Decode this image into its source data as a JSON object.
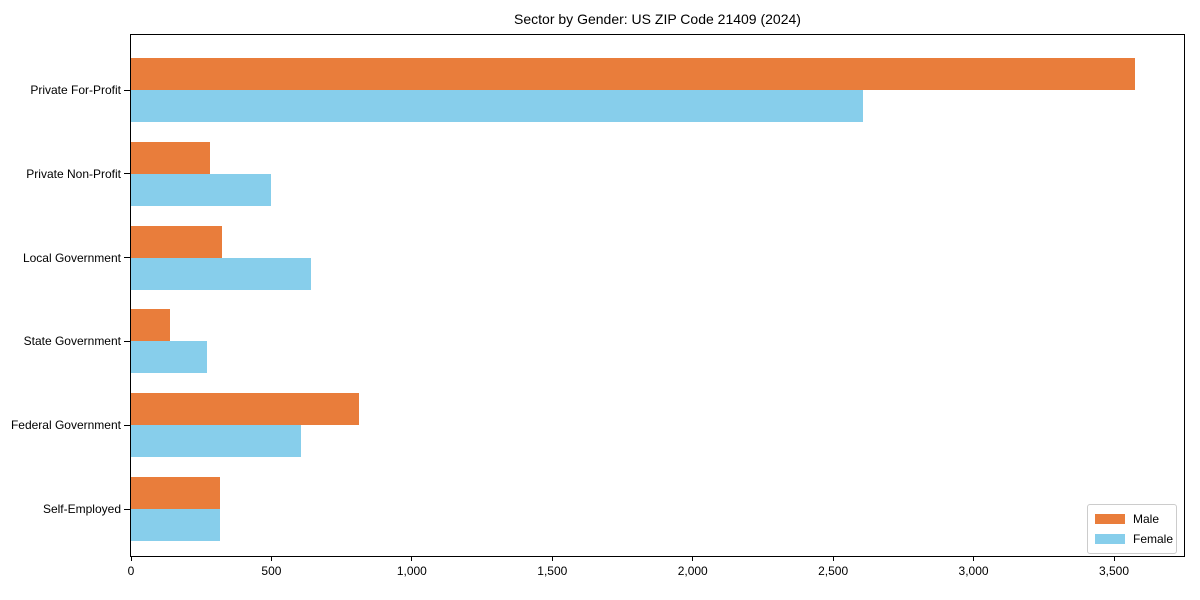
{
  "chart_data": {
    "type": "bar",
    "orientation": "horizontal",
    "title": "Sector by Gender: US ZIP Code 21409 (2024)",
    "categories": [
      "Private For-Profit",
      "Private Non-Profit",
      "Local Government",
      "State Government",
      "Federal Government",
      "Self-Employed"
    ],
    "series": [
      {
        "name": "Male",
        "color": "#E97D3B",
        "values": [
          3575,
          280,
          325,
          140,
          810,
          315
        ]
      },
      {
        "name": "Female",
        "color": "#87CEEB",
        "values": [
          2605,
          500,
          640,
          270,
          605,
          315
        ]
      }
    ],
    "xlabel": "",
    "ylabel": "",
    "xlim": [
      0,
      3757
    ],
    "xticks": [
      0,
      500,
      1000,
      1500,
      2000,
      2500,
      3000,
      3500
    ],
    "xtick_labels": [
      "0",
      "500",
      "1,000",
      "1,500",
      "2,000",
      "2,500",
      "3,000",
      "3,500"
    ],
    "grid": false,
    "background": "#ffffff",
    "frame_color": "#000000",
    "legend": {
      "position": "lower right"
    }
  }
}
